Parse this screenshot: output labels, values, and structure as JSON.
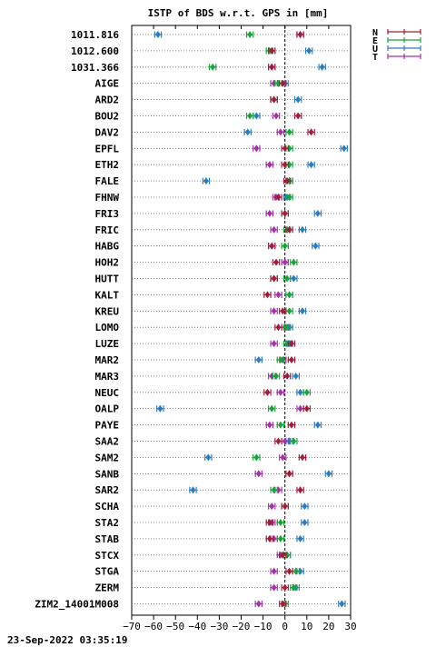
{
  "chart_data": {
    "type": "scatter",
    "title": "ISTP of BDS w.r.t. GPS in [mm]",
    "xlim": [
      -70,
      30
    ],
    "xticks": [
      -70,
      -60,
      -50,
      -40,
      -30,
      -20,
      -10,
      0,
      10,
      20,
      30
    ],
    "grid": "horizontal dotted lines per station, dashed zero line",
    "legend_position": "top-right, outside plot",
    "errorbar_halfwidth_mm": 1.5,
    "components": [
      {
        "key": "N",
        "color": "#a01e3c"
      },
      {
        "key": "E",
        "color": "#1aa33a"
      },
      {
        "key": "U",
        "color": "#2e7cc0"
      },
      {
        "key": "T",
        "color": "#a233a6"
      }
    ],
    "stations": [
      {
        "name": "1011.816",
        "N": 7,
        "E": -16,
        "U": -58,
        "T": 7
      },
      {
        "name": "1012.600",
        "N": -6,
        "E": -7,
        "U": 11,
        "T": -6
      },
      {
        "name": "1031.366",
        "N": -6,
        "E": -33,
        "U": 17,
        "T": -6
      },
      {
        "name": "AIGE",
        "N": -1,
        "E": -3,
        "U": 0,
        "T": -5
      },
      {
        "name": "ARD2",
        "N": -5,
        "E": -5,
        "U": 6,
        "T": -5
      },
      {
        "name": "BOU2",
        "N": 6,
        "E": -16,
        "U": -13,
        "T": -4
      },
      {
        "name": "DAV2",
        "N": 12,
        "E": 2,
        "U": -17,
        "T": -2
      },
      {
        "name": "EPFL",
        "N": 0,
        "E": 2,
        "U": 27,
        "T": -13
      },
      {
        "name": "ETH2",
        "N": 0,
        "E": 2,
        "U": 12,
        "T": -7
      },
      {
        "name": "FALE",
        "N": 1,
        "E": 2,
        "U": -36,
        "T": 2
      },
      {
        "name": "FHNW",
        "N": -3,
        "E": 2,
        "U": 1,
        "T": -4
      },
      {
        "name": "FRI3",
        "N": 0,
        "E": 0,
        "U": 15,
        "T": -7
      },
      {
        "name": "FRIC",
        "N": 2,
        "E": 1,
        "U": 8,
        "T": -5
      },
      {
        "name": "HABG",
        "N": -6,
        "E": 0,
        "U": 14,
        "T": -6
      },
      {
        "name": "HOH2",
        "N": -4,
        "E": 4,
        "U": 0,
        "T": 0
      },
      {
        "name": "HUTT",
        "N": -5,
        "E": 1,
        "U": 4,
        "T": -5
      },
      {
        "name": "KALT",
        "N": -8,
        "E": 2,
        "U": 2,
        "T": -3
      },
      {
        "name": "KREU",
        "N": -1,
        "E": 2,
        "U": 8,
        "T": -5
      },
      {
        "name": "LOMO",
        "N": -3,
        "E": 1,
        "U": 2,
        "T": 0
      },
      {
        "name": "LUZE",
        "N": 3,
        "E": 1,
        "U": 2,
        "T": -5
      },
      {
        "name": "MAR2",
        "N": 3,
        "E": -2,
        "U": -12,
        "T": -1
      },
      {
        "name": "MAR3",
        "N": 1,
        "E": -4,
        "U": 5,
        "T": -6
      },
      {
        "name": "NEUC",
        "N": -8,
        "E": 10,
        "U": 7,
        "T": -2
      },
      {
        "name": "OALP",
        "N": 10,
        "E": -6,
        "U": -57,
        "T": 7
      },
      {
        "name": "PAYE",
        "N": 3,
        "E": -2,
        "U": 15,
        "T": -7
      },
      {
        "name": "SAA2",
        "N": -3,
        "E": 4,
        "U": 2,
        "T": 0
      },
      {
        "name": "SAM2",
        "N": 8,
        "E": -13,
        "U": -35,
        "T": -1
      },
      {
        "name": "SANB",
        "N": 2,
        "E": 2,
        "U": 20,
        "T": -12
      },
      {
        "name": "SAR2",
        "N": 7,
        "E": -5,
        "U": -42,
        "T": -3
      },
      {
        "name": "SCHA",
        "N": 0,
        "E": 0,
        "U": 9,
        "T": -6
      },
      {
        "name": "STA2",
        "N": -7,
        "E": -2,
        "U": 9,
        "T": -6
      },
      {
        "name": "STAB",
        "N": -7,
        "E": -2,
        "U": 7,
        "T": -5
      },
      {
        "name": "STCX",
        "N": -1,
        "E": 1,
        "U": 1,
        "T": -2
      },
      {
        "name": "STGA",
        "N": 2,
        "E": 5,
        "U": 7,
        "T": -5
      },
      {
        "name": "ZERM",
        "N": 0,
        "E": 4,
        "U": 5,
        "T": -5
      },
      {
        "name": "ZIM2_14001M008",
        "N": -1,
        "E": 0,
        "U": 26,
        "T": -12
      }
    ]
  },
  "footer": {
    "timestamp": "23-Sep-2022 03:35:19"
  }
}
